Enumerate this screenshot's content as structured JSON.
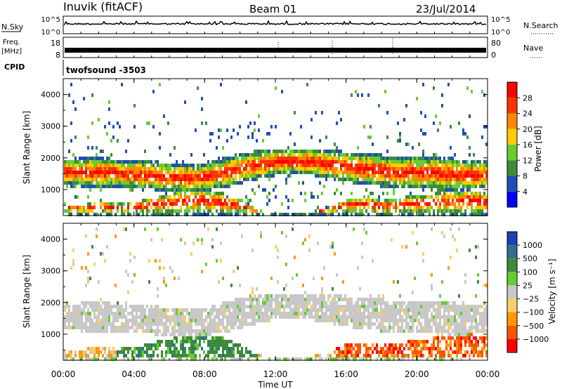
{
  "header": {
    "station": "Inuvik (fitACF)",
    "beam": "Beam 01",
    "date": "23/Jul/2014"
  },
  "panels": {
    "nsky": {
      "label": "N.Sky",
      "left_ticks": [
        "10^5",
        "10^0"
      ],
      "right_ticks": [
        "10^5",
        "10^0"
      ],
      "right_label": "N.Search"
    },
    "freq": {
      "label_line1": "Freq.",
      "label_line2": "[MHz]",
      "left_ticks": [
        "18",
        "8"
      ],
      "right_ticks": [
        "80",
        "0"
      ],
      "right_label": "Nave"
    },
    "cpid": {
      "label": "CPID",
      "value": "twofsound -3503"
    }
  },
  "chart_data": [
    {
      "type": "heatmap",
      "name": "power",
      "ylabel": "Slant Range [km]",
      "yticks": [
        "4000",
        "3000",
        "2000",
        "1000"
      ],
      "ylim": [
        180,
        4500
      ],
      "colorbar_label": "Power [dB]",
      "colorbar_ticks": [
        "28",
        "24",
        "20",
        "16",
        "12",
        "8",
        "4"
      ],
      "colors": [
        "#0000ff",
        "#1f4fb4",
        "#3c8c3c",
        "#66cc33",
        "#ffcc00",
        "#ff8800",
        "#ff3300",
        "#ff0000"
      ],
      "x_hours": [
        0,
        1,
        2,
        3,
        4,
        5,
        6,
        7,
        8,
        9,
        10,
        11,
        12,
        13,
        14,
        15,
        16,
        17,
        18,
        19,
        20,
        21,
        22,
        23,
        24
      ],
      "band_lower_km": [
        1200,
        1150,
        1100,
        1150,
        1100,
        1050,
        1000,
        950,
        1000,
        1100,
        1250,
        1400,
        1500,
        1550,
        1500,
        1400,
        1300,
        1200,
        1150,
        1100,
        1100,
        1050,
        1000,
        1050,
        1100
      ],
      "band_upper_km": [
        2000,
        2050,
        2100,
        2000,
        1950,
        1950,
        1900,
        1850,
        1900,
        2050,
        2200,
        2300,
        2350,
        2350,
        2350,
        2300,
        2250,
        2200,
        2150,
        2100,
        2100,
        2100,
        2050,
        2000,
        1950
      ],
      "low_band_upper_km": [
        600,
        550,
        700,
        600,
        650,
        800,
        900,
        1100,
        1050,
        950,
        700,
        400,
        300,
        300,
        350,
        500,
        750,
        800,
        700,
        800,
        850,
        950,
        1000,
        1050,
        1000
      ]
    },
    {
      "type": "heatmap",
      "name": "velocity",
      "ylabel": "Slant Range [km]",
      "yticks": [
        "4000",
        "3000",
        "2000",
        "1000"
      ],
      "ylim": [
        180,
        4500
      ],
      "colorbar_label": "Velocity [m s⁻¹]",
      "colorbar_ticks": [
        "1000",
        "500",
        "100",
        "25",
        "−25",
        "−100",
        "−500",
        "−1000"
      ],
      "colors": [
        "#ff0000",
        "#ff5500",
        "#ff9900",
        "#ffcc66",
        "#c8c8c8",
        "#66cc33",
        "#3c8c3c",
        "#2e6e8e",
        "#1f3fb4"
      ],
      "x_hours": [
        0,
        1,
        2,
        3,
        4,
        5,
        6,
        7,
        8,
        9,
        10,
        11,
        12,
        13,
        14,
        15,
        16,
        17,
        18,
        19,
        20,
        21,
        22,
        23,
        24
      ],
      "xlabel": "Time UT",
      "xticks": [
        "00:00",
        "04:00",
        "08:00",
        "12:00",
        "16:00",
        "20:00",
        "00:00"
      ]
    }
  ]
}
